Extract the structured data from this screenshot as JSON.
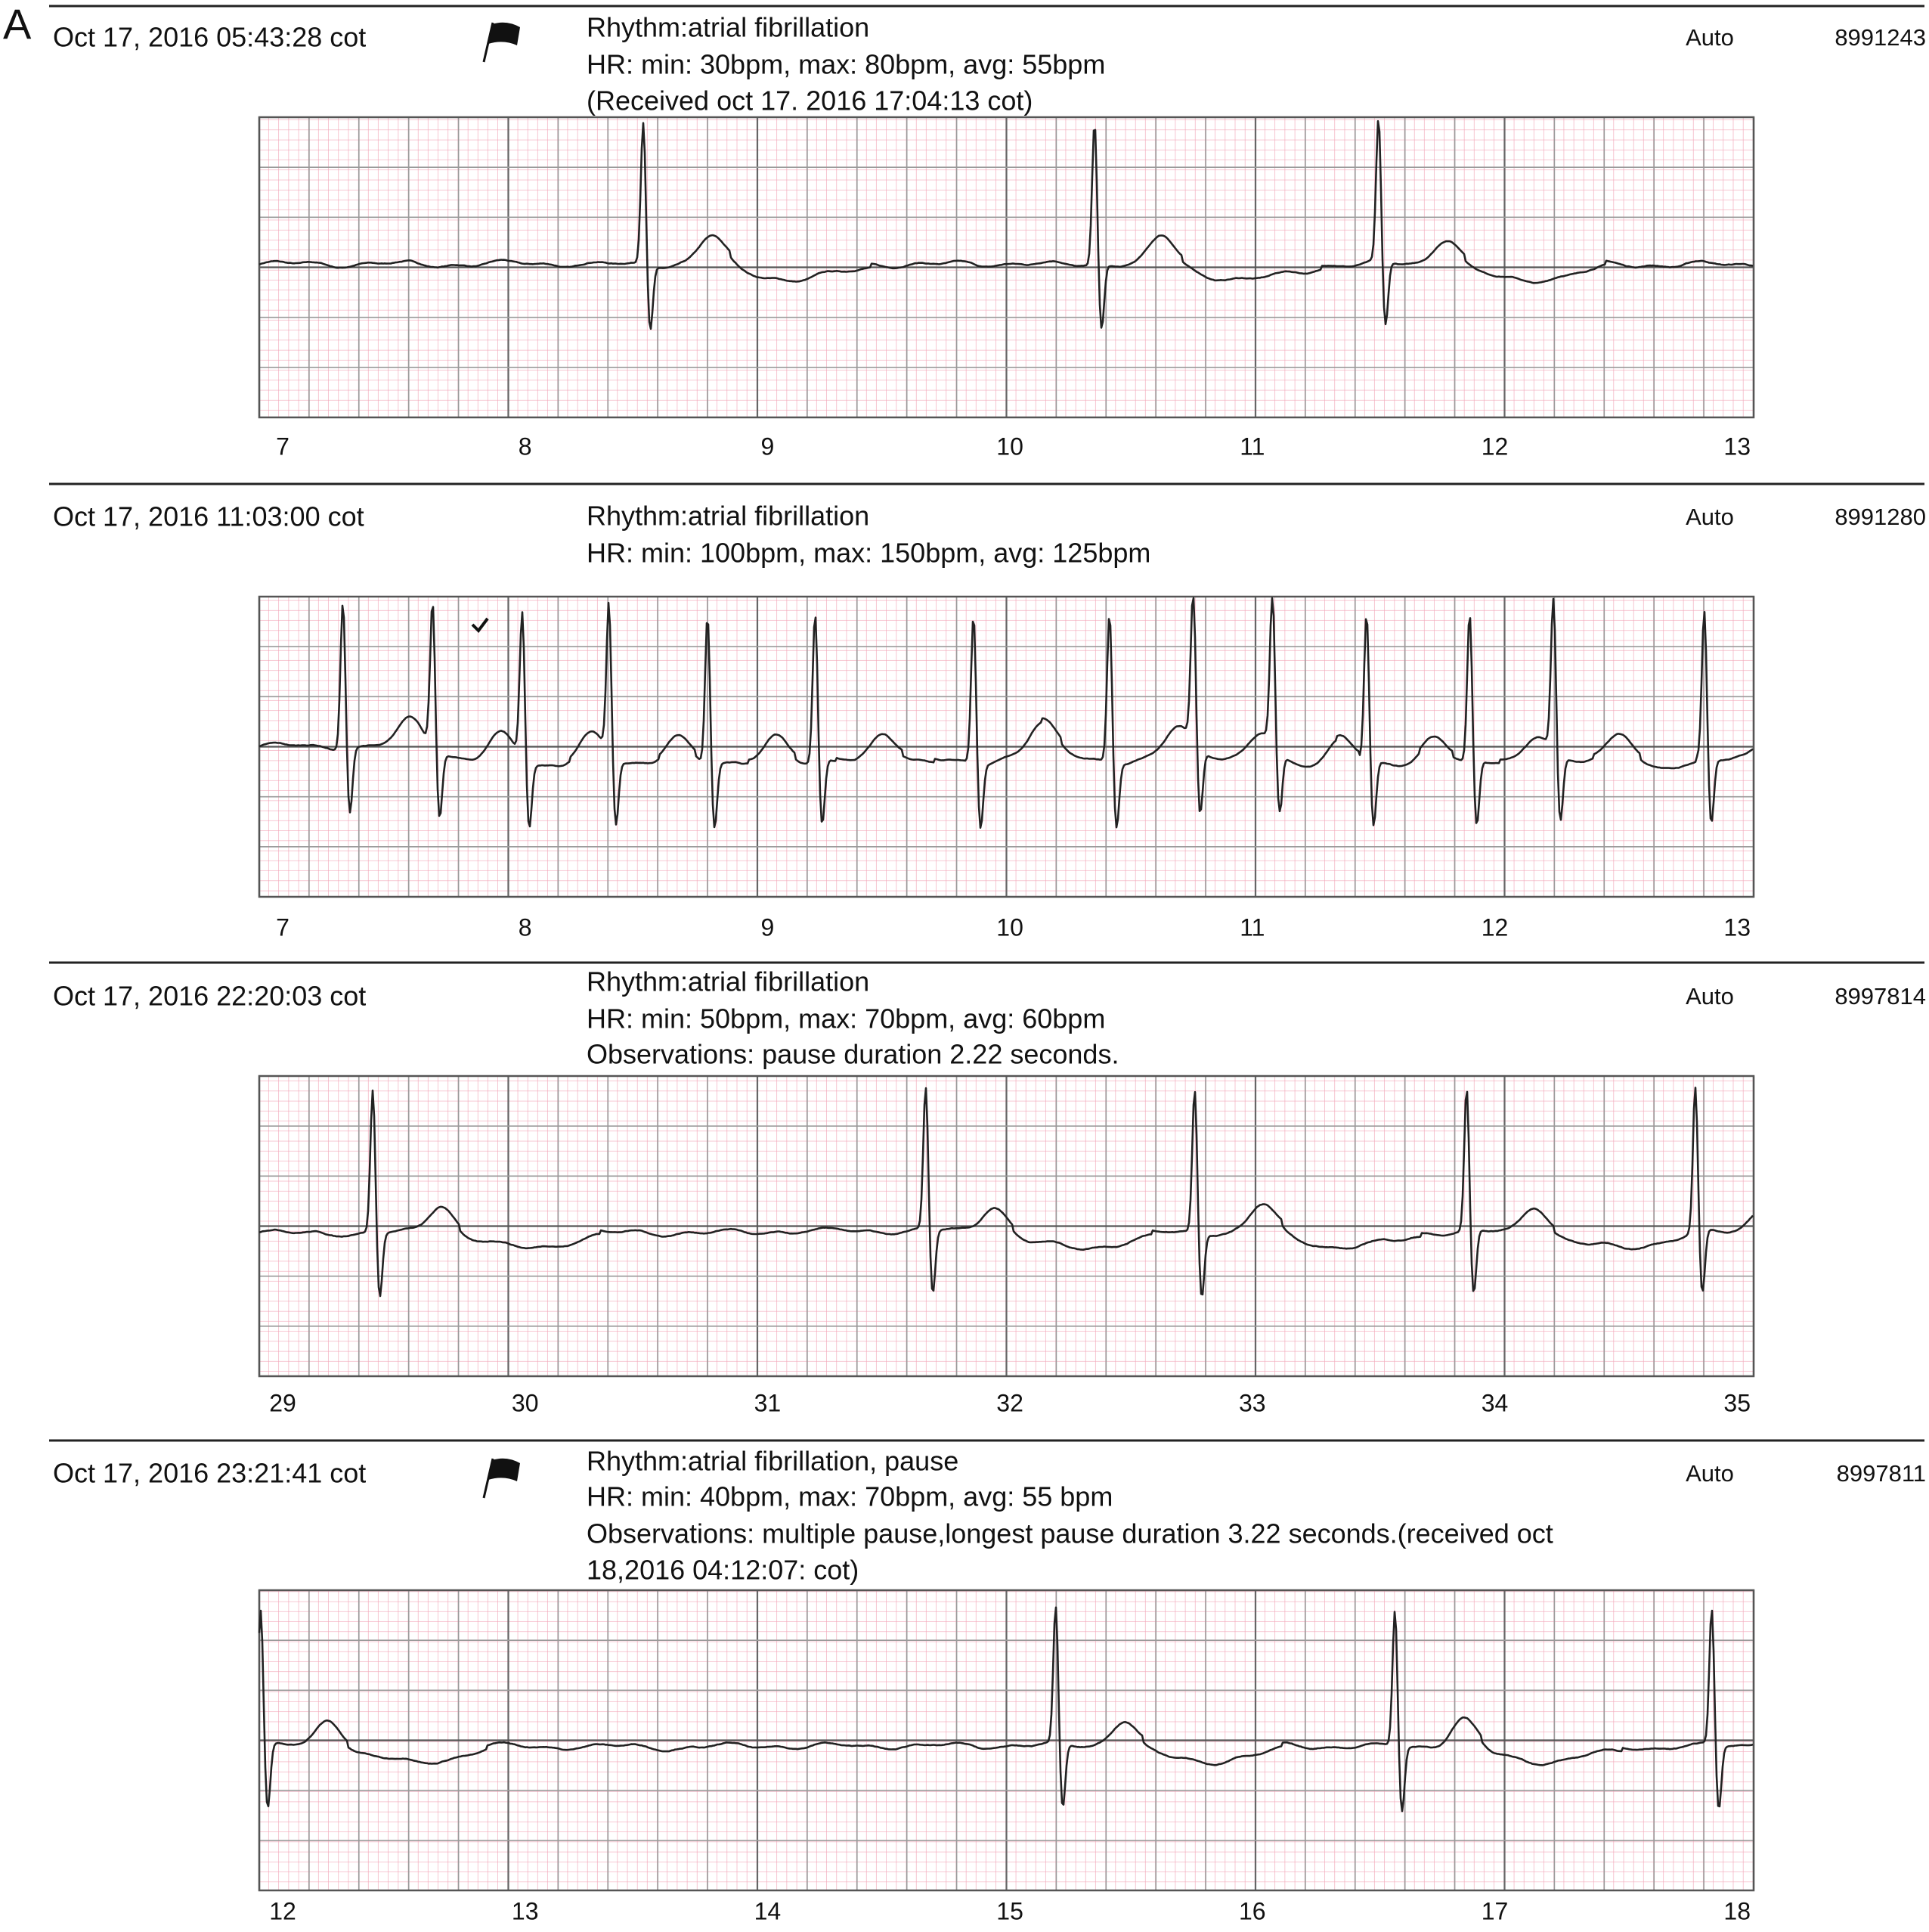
{
  "panel_label": "A",
  "strips": [
    {
      "timestamp": "Oct 17, 2016 05:43:28 cot",
      "flagged": true,
      "lines": [
        "Rhythm:atrial fibrillation",
        "HR: min: 30bpm, max: 80bpm, avg: 55bpm",
        "(Received oct 17. 2016 17:04:13 cot)"
      ],
      "mode": "Auto",
      "id": "8991243",
      "seconds": [
        7,
        8,
        9,
        10,
        11,
        12,
        13
      ]
    },
    {
      "timestamp": "Oct 17, 2016 11:03:00 cot",
      "flagged": false,
      "lines": [
        "Rhythm:atrial fibrillation",
        "HR: min: 100bpm, max: 150bpm, avg: 125bpm"
      ],
      "mode": "Auto",
      "id": "8991280",
      "seconds": [
        7,
        8,
        9,
        10,
        11,
        12,
        13
      ]
    },
    {
      "timestamp": "Oct 17, 2016 22:20:03 cot",
      "flagged": false,
      "lines": [
        "Rhythm:atrial fibrillation",
        "HR: min: 50bpm, max: 70bpm, avg: 60bpm",
        "Observations: pause duration 2.22 seconds."
      ],
      "mode": "Auto",
      "id": "8997814",
      "seconds": [
        29,
        30,
        31,
        32,
        33,
        34,
        35
      ]
    },
    {
      "timestamp": "Oct 17, 2016 23:21:41 cot",
      "flagged": true,
      "lines": [
        "Rhythm:atrial fibrillation, pause",
        "HR: min: 40bpm, max: 70bpm, avg: 55 bpm",
        "Observations: multiple pause,longest pause duration 3.22 seconds.(received oct",
        "18,2016 04:12:07: cot)"
      ],
      "mode": "Auto",
      "id": "8997811",
      "seconds": [
        12,
        13,
        14,
        15,
        16,
        17,
        18
      ]
    }
  ]
}
